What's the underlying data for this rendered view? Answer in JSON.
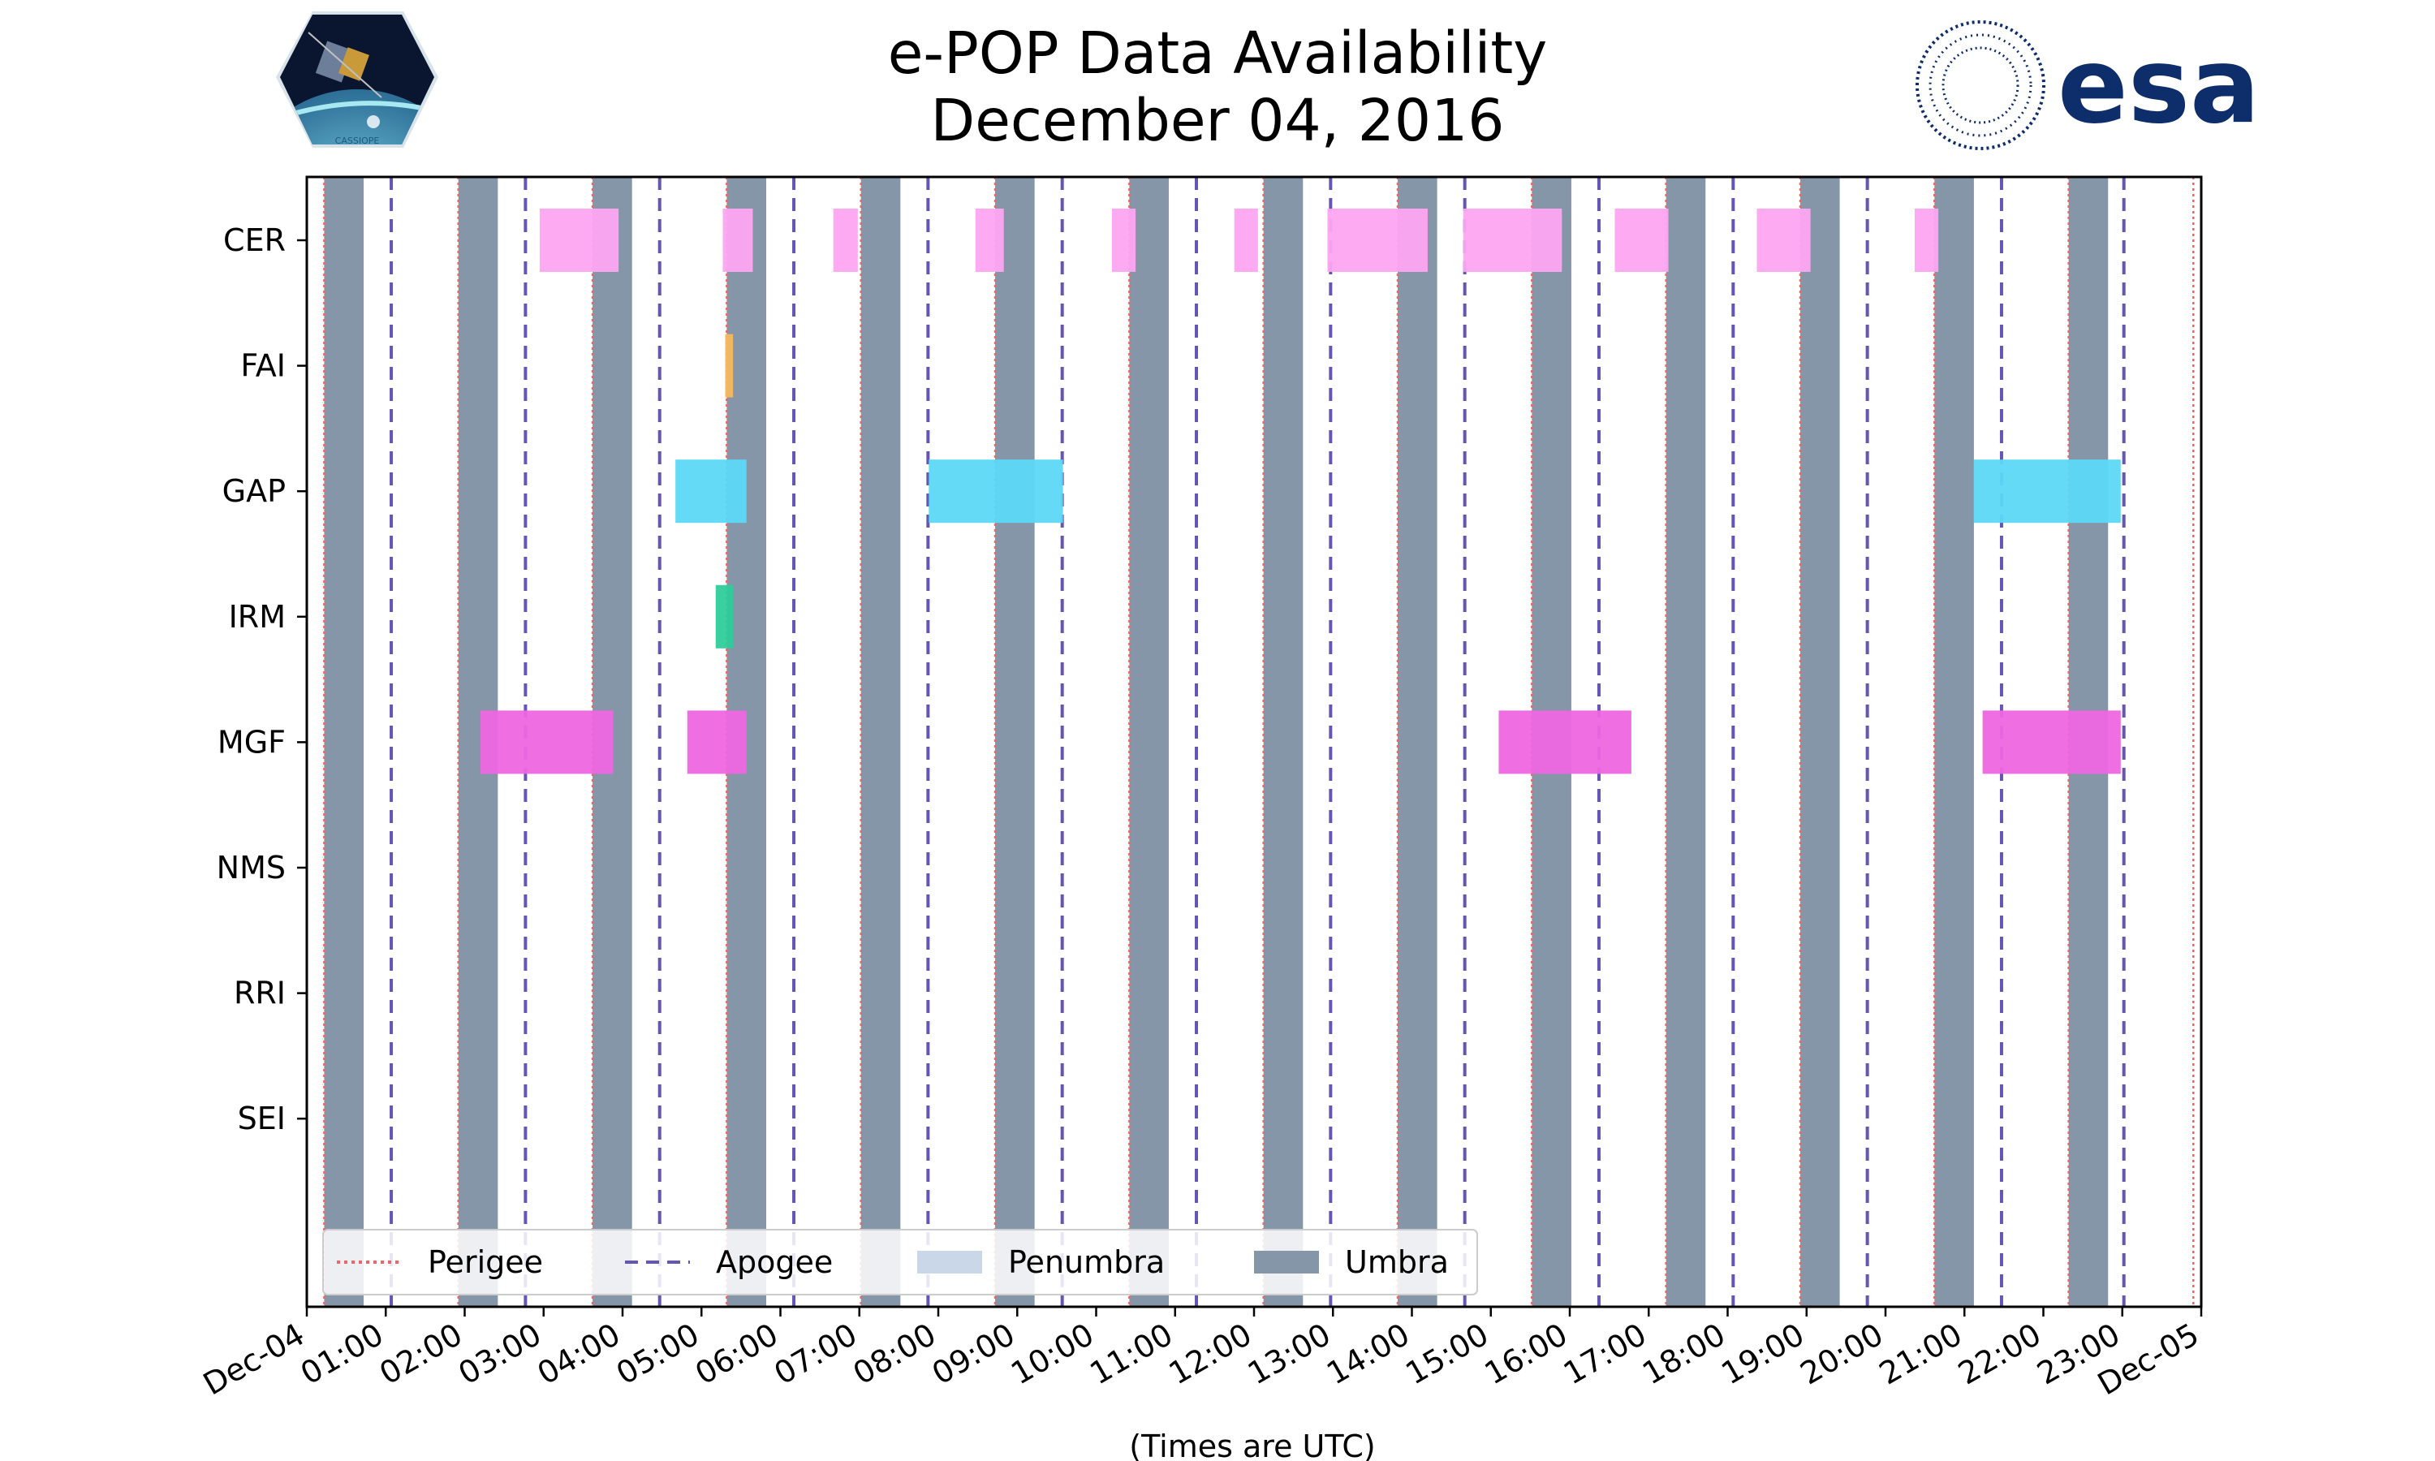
{
  "chart_data": {
    "type": "timeline",
    "title": "e-POP Data Availability",
    "subtitle": "December 04, 2016",
    "xlabel": "(Times are UTC)",
    "xlim": [
      0,
      24
    ],
    "x_ticks": [
      {
        "hour": 0,
        "label": "Dec-04"
      },
      {
        "hour": 1,
        "label": "01:00"
      },
      {
        "hour": 2,
        "label": "02:00"
      },
      {
        "hour": 3,
        "label": "03:00"
      },
      {
        "hour": 4,
        "label": "04:00"
      },
      {
        "hour": 5,
        "label": "05:00"
      },
      {
        "hour": 6,
        "label": "06:00"
      },
      {
        "hour": 7,
        "label": "07:00"
      },
      {
        "hour": 8,
        "label": "08:00"
      },
      {
        "hour": 9,
        "label": "09:00"
      },
      {
        "hour": 10,
        "label": "10:00"
      },
      {
        "hour": 11,
        "label": "11:00"
      },
      {
        "hour": 12,
        "label": "12:00"
      },
      {
        "hour": 13,
        "label": "13:00"
      },
      {
        "hour": 14,
        "label": "14:00"
      },
      {
        "hour": 15,
        "label": "15:00"
      },
      {
        "hour": 16,
        "label": "16:00"
      },
      {
        "hour": 17,
        "label": "17:00"
      },
      {
        "hour": 18,
        "label": "18:00"
      },
      {
        "hour": 19,
        "label": "19:00"
      },
      {
        "hour": 20,
        "label": "20:00"
      },
      {
        "hour": 21,
        "label": "21:00"
      },
      {
        "hour": 22,
        "label": "22:00"
      },
      {
        "hour": 23,
        "label": "23:00"
      },
      {
        "hour": 24,
        "label": "Dec-05"
      }
    ],
    "instruments": [
      "CER",
      "FAI",
      "GAP",
      "IRM",
      "MGF",
      "NMS",
      "RRI",
      "SEI"
    ],
    "instrument_colors": {
      "CER": "#fda5f2",
      "FAI": "#f5b85e",
      "GAP": "#5cd8f5",
      "IRM": "#2ecc9a",
      "MGF": "#ee66e0",
      "NMS": "#888888",
      "RRI": "#888888",
      "SEI": "#888888"
    },
    "availability": [
      {
        "instrument": "CER",
        "start": 2.95,
        "end": 3.95
      },
      {
        "instrument": "CER",
        "start": 5.27,
        "end": 5.65
      },
      {
        "instrument": "CER",
        "start": 6.67,
        "end": 6.98
      },
      {
        "instrument": "CER",
        "start": 8.47,
        "end": 8.83
      },
      {
        "instrument": "CER",
        "start": 10.2,
        "end": 10.5
      },
      {
        "instrument": "CER",
        "start": 11.75,
        "end": 12.05
      },
      {
        "instrument": "CER",
        "start": 12.93,
        "end": 14.2
      },
      {
        "instrument": "CER",
        "start": 14.65,
        "end": 15.9
      },
      {
        "instrument": "CER",
        "start": 16.57,
        "end": 17.25
      },
      {
        "instrument": "CER",
        "start": 18.37,
        "end": 19.05
      },
      {
        "instrument": "CER",
        "start": 20.37,
        "end": 20.67
      },
      {
        "instrument": "FAI",
        "start": 5.3,
        "end": 5.4
      },
      {
        "instrument": "GAP",
        "start": 4.67,
        "end": 5.57
      },
      {
        "instrument": "GAP",
        "start": 7.88,
        "end": 9.58
      },
      {
        "instrument": "GAP",
        "start": 21.12,
        "end": 22.98
      },
      {
        "instrument": "IRM",
        "start": 5.18,
        "end": 5.4
      },
      {
        "instrument": "MGF",
        "start": 2.2,
        "end": 3.88
      },
      {
        "instrument": "MGF",
        "start": 4.82,
        "end": 5.57
      },
      {
        "instrument": "MGF",
        "start": 15.1,
        "end": 16.78
      },
      {
        "instrument": "MGF",
        "start": 21.23,
        "end": 22.98
      }
    ],
    "umbra_intervals": [
      [
        0.22,
        0.72
      ],
      [
        1.92,
        2.42
      ],
      [
        3.62,
        4.12
      ],
      [
        5.32,
        5.82
      ],
      [
        7.02,
        7.52
      ],
      [
        8.72,
        9.22
      ],
      [
        10.42,
        10.92
      ],
      [
        12.12,
        12.62
      ],
      [
        13.82,
        14.32
      ],
      [
        15.52,
        16.02
      ],
      [
        17.22,
        17.72
      ],
      [
        18.92,
        19.42
      ],
      [
        20.62,
        21.12
      ],
      [
        22.32,
        22.82
      ]
    ],
    "perigee_times": [
      0.22,
      1.92,
      3.62,
      5.32,
      7.02,
      8.72,
      10.42,
      12.12,
      13.82,
      15.52,
      17.22,
      18.92,
      20.62,
      22.32,
      23.9
    ],
    "apogee_times": [
      1.07,
      2.77,
      4.47,
      6.17,
      7.87,
      9.57,
      11.27,
      12.97,
      14.67,
      16.37,
      18.07,
      19.77,
      21.47,
      23.02
    ],
    "series_styles": {
      "umbra_color": "#8496a8",
      "penumbra_color": "#c9d7e8",
      "perigee_color": "#f06464",
      "apogee_color": "#6555b5"
    },
    "legend": {
      "position": "lower-left",
      "items": [
        {
          "key": "perigee",
          "label": "Perigee"
        },
        {
          "key": "apogee",
          "label": "Apogee"
        },
        {
          "key": "penumbra",
          "label": "Penumbra"
        },
        {
          "key": "umbra",
          "label": "Umbra"
        }
      ]
    }
  },
  "logos": {
    "left_logo_text": "CASSIOPE",
    "right_logo_text": "esa"
  }
}
